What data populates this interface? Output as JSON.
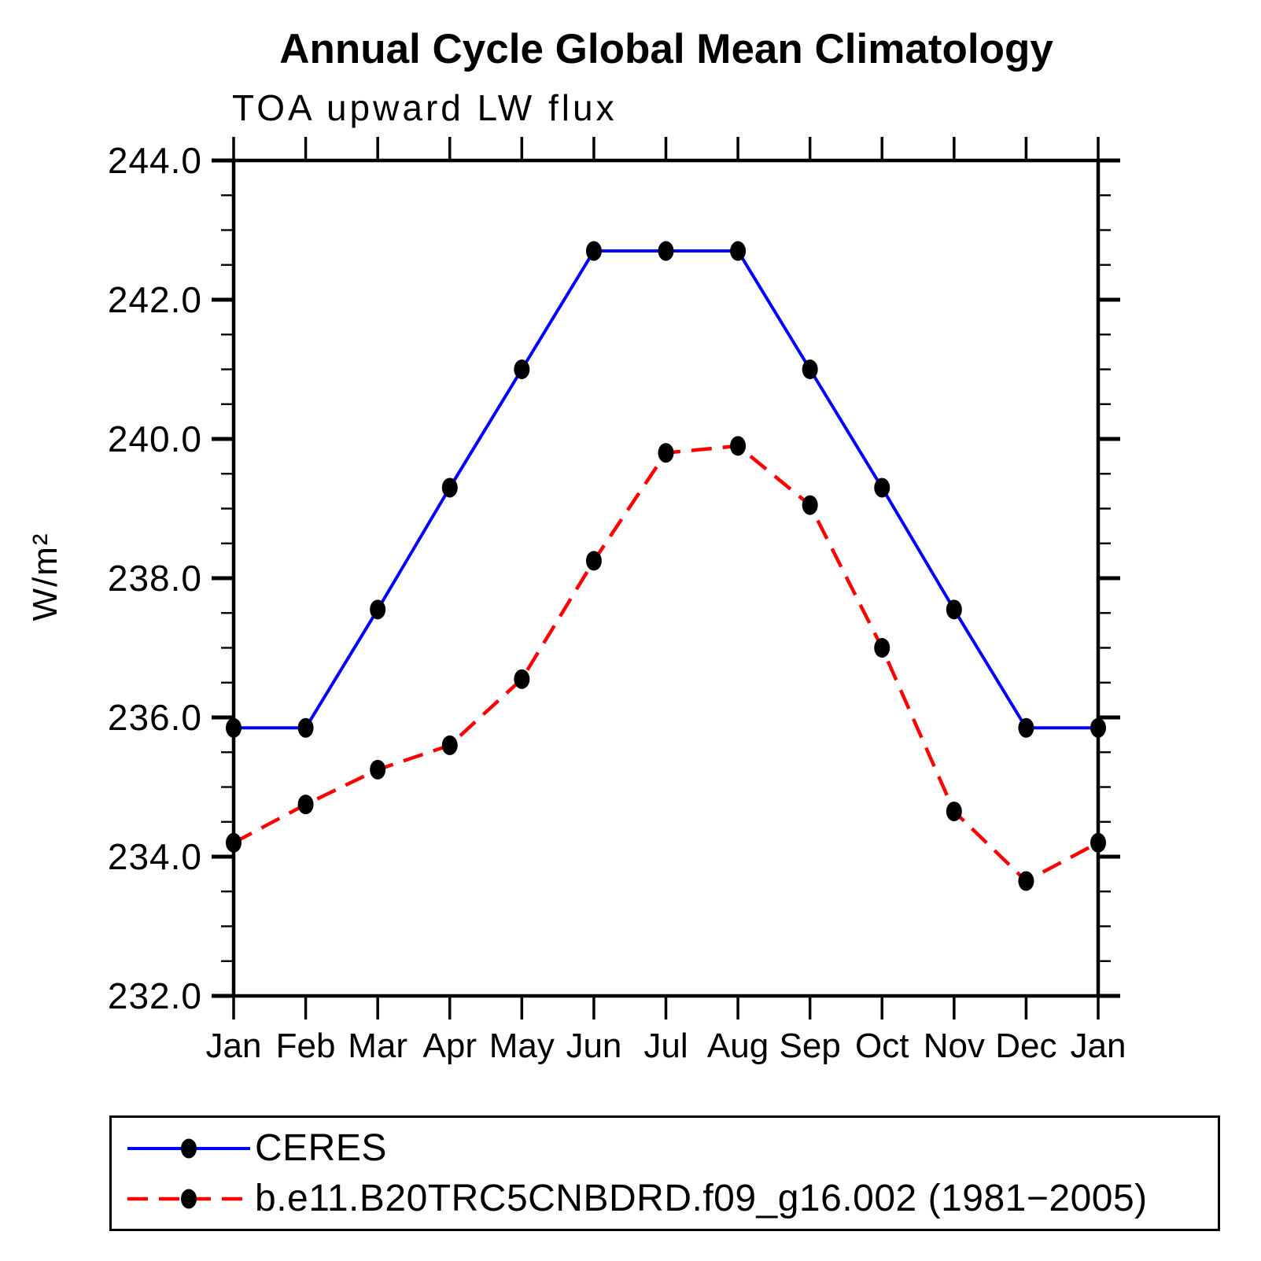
{
  "chart_data": {
    "type": "line",
    "title": "Annual Cycle Global Mean Climatology",
    "subtitle": "TOA upward LW flux",
    "ylabel": "W/m²",
    "x_categories": [
      "Jan",
      "Feb",
      "Mar",
      "Apr",
      "May",
      "Jun",
      "Jul",
      "Aug",
      "Sep",
      "Oct",
      "Nov",
      "Dec",
      "Jan"
    ],
    "ylim": [
      232.0,
      244.0
    ],
    "ytick_values": [
      244.0,
      242.0,
      240.0,
      238.0,
      236.0,
      234.0,
      232.0
    ],
    "ytick_labels": [
      "244.0",
      "242.0",
      "240.0",
      "238.0",
      "236.0",
      "234.0",
      "232.0"
    ],
    "yminor_step": 0.5,
    "grid": false,
    "legend_position": "bottom-box",
    "series": [
      {
        "name": "CERES",
        "color": "#0000ff",
        "line_style": "solid",
        "marker": "filled-circle",
        "marker_color": "#000000",
        "values": [
          235.85,
          235.85,
          237.55,
          239.3,
          241.0,
          242.7,
          242.7,
          242.7,
          241.0,
          239.3,
          237.55,
          235.85,
          235.85
        ]
      },
      {
        "name": "b.e11.B20TRC5CNBDRD.f09_g16.002 (1981−2005)",
        "color": "#ff0000",
        "line_style": "dashed",
        "marker": "filled-circle",
        "marker_color": "#000000",
        "values": [
          234.2,
          234.75,
          235.25,
          235.6,
          236.55,
          238.25,
          239.8,
          239.9,
          239.05,
          237.0,
          234.65,
          233.65,
          234.2
        ]
      }
    ]
  }
}
